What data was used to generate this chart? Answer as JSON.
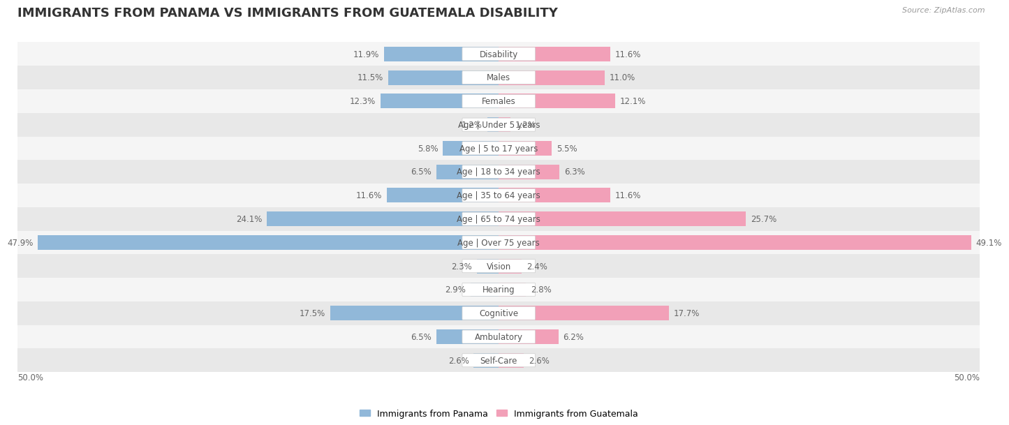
{
  "title": "IMMIGRANTS FROM PANAMA VS IMMIGRANTS FROM GUATEMALA DISABILITY",
  "source": "Source: ZipAtlas.com",
  "categories": [
    "Disability",
    "Males",
    "Females",
    "Age | Under 5 years",
    "Age | 5 to 17 years",
    "Age | 18 to 34 years",
    "Age | 35 to 64 years",
    "Age | 65 to 74 years",
    "Age | Over 75 years",
    "Vision",
    "Hearing",
    "Cognitive",
    "Ambulatory",
    "Self-Care"
  ],
  "panama_values": [
    11.9,
    11.5,
    12.3,
    1.2,
    5.8,
    6.5,
    11.6,
    24.1,
    47.9,
    2.3,
    2.9,
    17.5,
    6.5,
    2.6
  ],
  "guatemala_values": [
    11.6,
    11.0,
    12.1,
    1.2,
    5.5,
    6.3,
    11.6,
    25.7,
    49.1,
    2.4,
    2.8,
    17.7,
    6.2,
    2.6
  ],
  "panama_color": "#91b8d9",
  "guatemala_color": "#f2a0b8",
  "panama_label": "Immigrants from Panama",
  "guatemala_label": "Immigrants from Guatemala",
  "xlim": 50.0,
  "bar_height": 0.62,
  "row_bg_even": "#f5f5f5",
  "row_bg_odd": "#e8e8e8",
  "title_fontsize": 13,
  "label_fontsize": 8.5,
  "value_fontsize": 8.5,
  "xlabel_bottom_left": "50.0%",
  "xlabel_bottom_right": "50.0%"
}
